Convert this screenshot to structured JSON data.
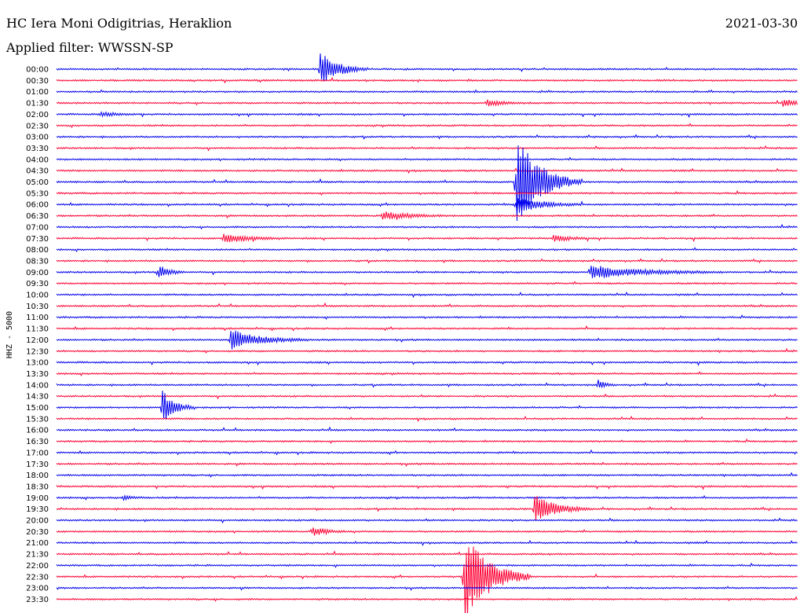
{
  "header": {
    "title": "HC Iera Moni Odigitrias, Heraklion",
    "date": "2021-03-30",
    "filter": "Applied filter: WWSSN-SP"
  },
  "colors": {
    "blue_trace": "#0000ee",
    "red_trace": "#ff0033",
    "background": "#ffffff",
    "text": "#000000"
  },
  "chart_data": {
    "type": "line",
    "subtype": "helicorder",
    "ylabel": "HHZ - 5000",
    "row_labels": [
      "00:00",
      "00:30",
      "01:00",
      "01:30",
      "02:00",
      "02:30",
      "03:00",
      "03:30",
      "04:00",
      "04:30",
      "05:00",
      "05:30",
      "06:00",
      "06:30",
      "07:00",
      "07:30",
      "08:00",
      "08:30",
      "09:00",
      "09:30",
      "10:00",
      "10:30",
      "11:00",
      "11:30",
      "12:00",
      "12:30",
      "13:00",
      "13:30",
      "14:00",
      "14:30",
      "15:00",
      "15:30",
      "16:00",
      "16:30",
      "17:00",
      "17:30",
      "18:00",
      "18:30",
      "19:00",
      "19:30",
      "20:00",
      "20:30",
      "21:00",
      "21:30",
      "22:00",
      "22:30",
      "23:00",
      "23:30"
    ],
    "row_colors": [
      "blue",
      "red"
    ],
    "events": [
      {
        "row": 0,
        "x": 0.355,
        "amp": 1.6,
        "dur": 0.022
      },
      {
        "row": 3,
        "x": 0.58,
        "amp": 0.3,
        "dur": 0.02
      },
      {
        "row": 3,
        "x": 0.98,
        "amp": 0.3,
        "dur": 0.02
      },
      {
        "row": 4,
        "x": 0.06,
        "amp": 0.2,
        "dur": 0.02
      },
      {
        "row": 10,
        "x": 0.62,
        "amp": 4.2,
        "dur": 0.03
      },
      {
        "row": 12,
        "x": 0.62,
        "amp": 0.8,
        "dur": 0.03
      },
      {
        "row": 13,
        "x": 0.44,
        "amp": 0.4,
        "dur": 0.03
      },
      {
        "row": 15,
        "x": 0.225,
        "amp": 0.4,
        "dur": 0.03
      },
      {
        "row": 15,
        "x": 0.67,
        "amp": 0.3,
        "dur": 0.02
      },
      {
        "row": 18,
        "x": 0.137,
        "amp": 0.7,
        "dur": 0.012
      },
      {
        "row": 18,
        "x": 0.72,
        "amp": 0.6,
        "dur": 0.06
      },
      {
        "row": 24,
        "x": 0.235,
        "amp": 0.9,
        "dur": 0.035
      },
      {
        "row": 28,
        "x": 0.73,
        "amp": 0.5,
        "dur": 0.008
      },
      {
        "row": 30,
        "x": 0.142,
        "amp": 1.6,
        "dur": 0.015
      },
      {
        "row": 38,
        "x": 0.09,
        "amp": 0.2,
        "dur": 0.01
      },
      {
        "row": 39,
        "x": 0.645,
        "amp": 1.3,
        "dur": 0.025
      },
      {
        "row": 41,
        "x": 0.345,
        "amp": 0.5,
        "dur": 0.015
      },
      {
        "row": 45,
        "x": 0.55,
        "amp": 4.2,
        "dur": 0.03
      }
    ]
  }
}
